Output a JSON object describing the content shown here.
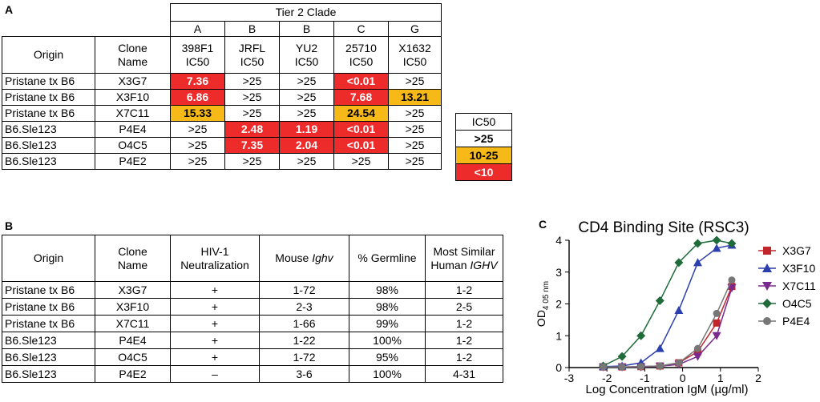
{
  "panelA": {
    "label": "A",
    "tier_header": "Tier 2 Clade",
    "clades": [
      "A",
      "B",
      "B",
      "C",
      "G"
    ],
    "col_origin": "Origin",
    "col_clone": [
      "Clone",
      "Name"
    ],
    "viruses": [
      {
        "name": "398F1",
        "unit": "IC50"
      },
      {
        "name": "JRFL",
        "unit": "IC50"
      },
      {
        "name": "YU2",
        "unit": "IC50"
      },
      {
        "name": "25710",
        "unit": "IC50"
      },
      {
        "name": "X1632",
        "unit": "IC50"
      }
    ],
    "rows": [
      {
        "origin": "Pristane tx B6",
        "clone": "X3G7",
        "values": [
          {
            "text": "7.36",
            "level": "red"
          },
          {
            "text": ">25",
            "level": "none"
          },
          {
            "text": ">25",
            "level": "none"
          },
          {
            "text": "<0.01",
            "level": "red"
          },
          {
            "text": ">25",
            "level": "none"
          }
        ]
      },
      {
        "origin": "Pristane tx B6",
        "clone": "X3F10",
        "values": [
          {
            "text": "6.86",
            "level": "red"
          },
          {
            "text": ">25",
            "level": "none"
          },
          {
            "text": ">25",
            "level": "none"
          },
          {
            "text": "7.68",
            "level": "red"
          },
          {
            "text": "13.21",
            "level": "yellow"
          }
        ]
      },
      {
        "origin": "Pristane tx B6",
        "clone": "X7C11",
        "values": [
          {
            "text": "15.33",
            "level": "yellow"
          },
          {
            "text": ">25",
            "level": "none"
          },
          {
            "text": ">25",
            "level": "none"
          },
          {
            "text": "24.54",
            "level": "yellow"
          },
          {
            "text": ">25",
            "level": "none"
          }
        ]
      },
      {
        "origin": "B6.Sle123",
        "clone": "P4E4",
        "values": [
          {
            "text": ">25",
            "level": "none"
          },
          {
            "text": "2.48",
            "level": "red"
          },
          {
            "text": "1.19",
            "level": "red"
          },
          {
            "text": "<0.01",
            "level": "red"
          },
          {
            "text": ">25",
            "level": "none"
          }
        ]
      },
      {
        "origin": "B6.Sle123",
        "clone": "O4C5",
        "values": [
          {
            "text": ">25",
            "level": "none"
          },
          {
            "text": "7.35",
            "level": "red"
          },
          {
            "text": "2.04",
            "level": "red"
          },
          {
            "text": "<0.01",
            "level": "red"
          },
          {
            "text": ">25",
            "level": "none"
          }
        ]
      },
      {
        "origin": "B6.Sle123",
        "clone": "P4E2",
        "values": [
          {
            "text": ">25",
            "level": "none"
          },
          {
            "text": ">25",
            "level": "none"
          },
          {
            "text": ">25",
            "level": "none"
          },
          {
            "text": ">25",
            "level": "none"
          },
          {
            "text": ">25",
            "level": "none"
          }
        ]
      }
    ],
    "legend": {
      "title": "IC50",
      "items": [
        {
          "text": ">25",
          "level": "none"
        },
        {
          "text": "10-25",
          "level": "yellow"
        },
        {
          "text": "<10",
          "level": "red"
        }
      ]
    },
    "colors": {
      "red": "#ee2b2b",
      "yellow": "#f7b918"
    }
  },
  "panelB": {
    "label": "B",
    "headers": {
      "origin": "Origin",
      "clone": [
        "Clone",
        "Name"
      ],
      "neut": [
        "HIV-1",
        "Neutralization"
      ],
      "ighv_prefix": "Mouse ",
      "ighv_italic": "Ighv",
      "germline": "% Germline",
      "human_top": "Most Similar",
      "human_prefix": "Human ",
      "human_italic": "IGHV"
    },
    "rows": [
      {
        "origin": "Pristane tx B6",
        "clone": "X3G7",
        "neut": "+",
        "ighv": "1-72",
        "germline": "98%",
        "human": "1-2"
      },
      {
        "origin": "Pristane tx B6",
        "clone": "X3F10",
        "neut": "+",
        "ighv": "2-3",
        "germline": "98%",
        "human": "2-5"
      },
      {
        "origin": "Pristane tx B6",
        "clone": "X7C11",
        "neut": "+",
        "ighv": "1-66",
        "germline": "99%",
        "human": "1-2"
      },
      {
        "origin": "B6.Sle123",
        "clone": "P4E4",
        "neut": "+",
        "ighv": "1-22",
        "germline": "100%",
        "human": "1-2"
      },
      {
        "origin": "B6.Sle123",
        "clone": "O4C5",
        "neut": "+",
        "ighv": "1-72",
        "germline": "95%",
        "human": "1-2"
      },
      {
        "origin": "B6.Sle123",
        "clone": "P4E2",
        "neut": "–",
        "ighv": "3-6",
        "germline": "100%",
        "human": "4-31"
      }
    ]
  },
  "panelC": {
    "label": "C"
  },
  "chart_data": {
    "type": "line",
    "title": "CD4 Binding Site (RSC3)",
    "xlabel": "Log Concentration IgM (µg/ml)",
    "ylabel_main": "OD",
    "ylabel_sub": "4 05 nm",
    "xlim": [
      -3,
      2
    ],
    "ylim": [
      0,
      4
    ],
    "xticks": [
      -3,
      -2,
      -1,
      0,
      1,
      2
    ],
    "yticks": [
      0,
      1,
      2,
      3,
      4
    ],
    "x": [
      -2.1,
      -1.6,
      -1.1,
      -0.6,
      -0.1,
      0.4,
      0.9,
      1.3
    ],
    "series": [
      {
        "name": "X3G7",
        "marker": "square",
        "color": "#c0262c",
        "values": [
          0.02,
          0.02,
          0.03,
          0.05,
          0.15,
          0.5,
          1.4,
          2.55
        ]
      },
      {
        "name": "X3F10",
        "marker": "triangle-up",
        "color": "#2c3fae",
        "values": [
          0.03,
          0.05,
          0.15,
          0.6,
          1.8,
          3.3,
          3.75,
          3.85
        ]
      },
      {
        "name": "X7C11",
        "marker": "triangle-down",
        "color": "#7a2a8f",
        "values": [
          0.02,
          0.02,
          0.02,
          0.04,
          0.1,
          0.35,
          1.0,
          2.5
        ]
      },
      {
        "name": "O4C5",
        "marker": "diamond",
        "color": "#1f6b3a",
        "values": [
          0.05,
          0.35,
          1.0,
          2.1,
          3.3,
          3.9,
          4.0,
          3.9
        ]
      },
      {
        "name": "P4E4",
        "marker": "circle",
        "color": "#777777",
        "values": [
          0.02,
          0.02,
          0.03,
          0.05,
          0.15,
          0.6,
          1.7,
          2.75
        ]
      }
    ]
  }
}
